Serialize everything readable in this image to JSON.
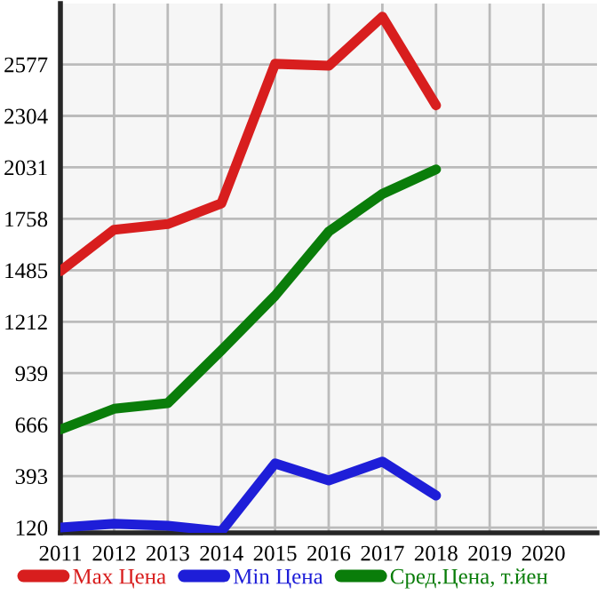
{
  "chart_data": {
    "type": "line",
    "x": [
      2011,
      2012,
      2013,
      2014,
      2015,
      2016,
      2017,
      2018
    ],
    "series": [
      {
        "name": "Max Цена",
        "color": "#d81e1e",
        "values": [
          1480,
          1700,
          1730,
          1840,
          2580,
          2570,
          2830,
          2360
        ]
      },
      {
        "name": "Min Цена",
        "color": "#1e1ed8",
        "values": [
          120,
          140,
          130,
          100,
          460,
          370,
          470,
          290
        ]
      },
      {
        "name": "Сред.Цена, т.йен",
        "color": "#0a7d0a",
        "values": [
          640,
          750,
          780,
          1060,
          1350,
          1690,
          1890,
          2020
        ]
      }
    ],
    "xlim": [
      2011,
      2021
    ],
    "xticks": [
      2011,
      2012,
      2013,
      2014,
      2015,
      2016,
      2017,
      2018,
      2019,
      2020
    ],
    "ylim": [
      92,
      2900
    ],
    "yticks": [
      120,
      393,
      666,
      939,
      1212,
      1485,
      1758,
      2031,
      2304,
      2577
    ],
    "grid": true,
    "legend": "bottom",
    "marker": "none",
    "line_style": "solid"
  }
}
